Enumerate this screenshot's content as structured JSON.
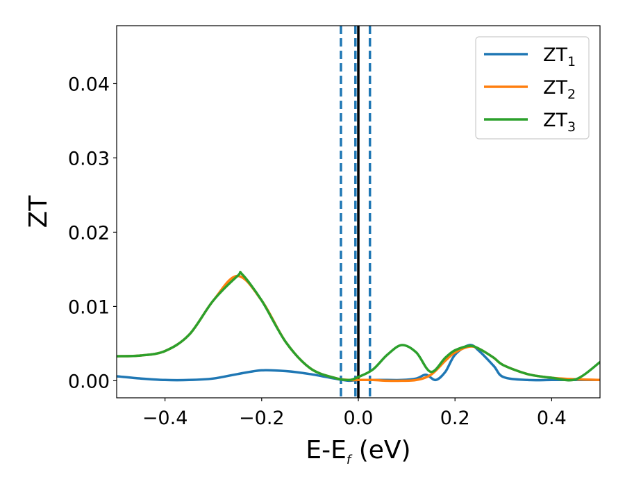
{
  "chart_data": {
    "type": "line",
    "xlabel": {
      "main": "E-E",
      "sub": "f",
      "unit": " (eV)"
    },
    "ylabel": "ZT",
    "xlim": [
      -0.5,
      0.5
    ],
    "ylim": [
      -0.0023,
      0.0478
    ],
    "xticks": [
      -0.4,
      -0.2,
      0.0,
      0.2,
      0.4
    ],
    "xtick_labels": [
      "−0.4",
      "−0.2",
      "0.0",
      "0.2",
      "0.4"
    ],
    "yticks": [
      0.0,
      0.01,
      0.02,
      0.03,
      0.04
    ],
    "ytick_labels": [
      "0.00",
      "0.01",
      "0.02",
      "0.03",
      "0.04"
    ],
    "grid": false,
    "legend_position": "top-right",
    "series": [
      {
        "name": "ZT",
        "sub": "1",
        "color": "#1f77b4",
        "x": [
          -0.5,
          -0.45,
          -0.4,
          -0.35,
          -0.3,
          -0.25,
          -0.2,
          -0.15,
          -0.1,
          -0.05,
          -0.02,
          0.0,
          0.03,
          0.06,
          0.09,
          0.12,
          0.14,
          0.16,
          0.18,
          0.2,
          0.23,
          0.25,
          0.28,
          0.3,
          0.35,
          0.4,
          0.45,
          0.5
        ],
        "y": [
          0.0006,
          0.0003,
          0.0001,
          0.0001,
          0.0003,
          0.0009,
          0.0014,
          0.0013,
          0.0009,
          0.0003,
          0.0,
          0.0001,
          0.0001,
          0.0001,
          0.0001,
          0.0003,
          0.0008,
          0.0001,
          0.0012,
          0.0035,
          0.0048,
          0.004,
          0.002,
          0.0005,
          0.0001,
          0.0001,
          0.0001,
          0.0001
        ]
      },
      {
        "name": "ZT",
        "sub": "2",
        "color": "#ff7f0e",
        "x": [
          -0.5,
          -0.45,
          -0.4,
          -0.35,
          -0.3,
          -0.25,
          -0.2,
          -0.15,
          -0.1,
          -0.05,
          -0.02,
          0.0,
          0.03,
          0.06,
          0.09,
          0.12,
          0.15,
          0.18,
          0.2,
          0.23,
          0.25,
          0.28,
          0.3,
          0.35,
          0.4,
          0.45,
          0.5
        ],
        "y": [
          0.0033,
          0.0034,
          0.004,
          0.0062,
          0.0108,
          0.0141,
          0.0108,
          0.0052,
          0.0017,
          0.0004,
          0.0001,
          0.0001,
          0.0001,
          0.0,
          0.0,
          0.0001,
          0.0008,
          0.0027,
          0.0038,
          0.0046,
          0.0043,
          0.0031,
          0.0021,
          0.0009,
          0.0004,
          0.0002,
          0.0001
        ]
      },
      {
        "name": "ZT",
        "sub": "3",
        "color": "#2ca02c",
        "x": [
          -0.5,
          -0.45,
          -0.4,
          -0.35,
          -0.3,
          -0.25,
          -0.24,
          -0.2,
          -0.15,
          -0.1,
          -0.05,
          -0.02,
          0.0,
          0.03,
          0.06,
          0.09,
          0.12,
          0.15,
          0.18,
          0.2,
          0.23,
          0.25,
          0.28,
          0.3,
          0.35,
          0.4,
          0.45,
          0.5
        ],
        "y": [
          0.0033,
          0.0034,
          0.004,
          0.0062,
          0.0108,
          0.0141,
          0.0143,
          0.0108,
          0.0052,
          0.0017,
          0.0004,
          0.0001,
          0.0005,
          0.0015,
          0.0035,
          0.0048,
          0.0038,
          0.0012,
          0.0031,
          0.0041,
          0.0047,
          0.0043,
          0.0031,
          0.0021,
          0.0009,
          0.0004,
          0.0002,
          0.0025
        ]
      }
    ],
    "vertical_lines": [
      {
        "x": 0.0,
        "style": "solid",
        "color": "#000000"
      },
      {
        "x": -0.036,
        "style": "dashed",
        "color": "#1f77b4"
      },
      {
        "x": -0.006,
        "style": "dashed",
        "color": "#1f77b4"
      },
      {
        "x": 0.024,
        "style": "dashed",
        "color": "#1f77b4"
      }
    ]
  }
}
